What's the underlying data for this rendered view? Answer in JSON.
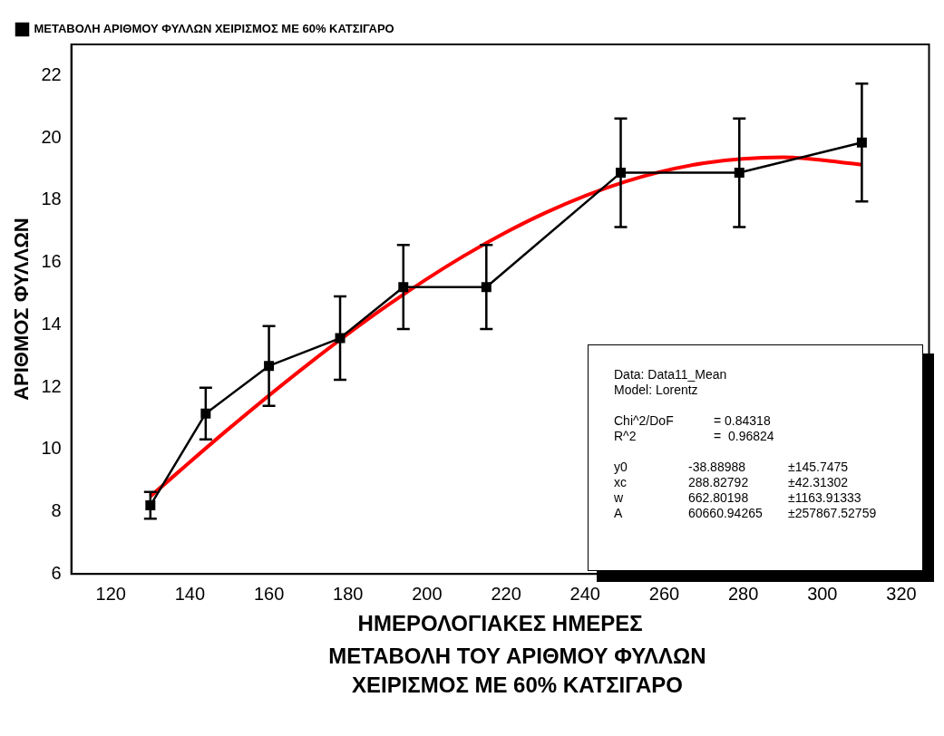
{
  "chart_data": {
    "type": "line",
    "title": "ΜΕΤΑΒΟΛΗ ΤΟΥ ΑΡΙΘΜΟΥ ΦΥΛΛΩΝ",
    "subtitle": "ΧΕΙΡΙΣΜΟΣ ΜΕ 60% ΚΑΤΣΙΓΑΡΟ",
    "xlabel": "ΗΜΕΡΟΛΟΓΙΑΚΕΣ ΗΜΕΡΕΣ",
    "ylabel": "ΑΡΙΘΜΟΣ ΦΥΛΛΩΝ",
    "xlim": [
      110,
      327
    ],
    "xticks": [
      120,
      140,
      160,
      180,
      200,
      220,
      240,
      260,
      280,
      300,
      320
    ],
    "ylim": [
      6,
      23
    ],
    "yticks": [
      6,
      8,
      10,
      12,
      14,
      16,
      18,
      20,
      22
    ],
    "grid": false,
    "legend": "top left",
    "series": [
      {
        "name": "ΜΕΤΑΒΟΛΗ ΑΡΙΘΜΟΥ ΦΥΛΛΩΝ ΧΕΙΡΙΣΜΟΣ ΜΕ 60% ΚΑΤΣΙΓΑΡΟ",
        "color": "#000000",
        "marker": "square",
        "line_style": "solid",
        "x": [
          130,
          144,
          160,
          178,
          194,
          215,
          249,
          279,
          310
        ],
        "values": [
          8.2,
          11.15,
          12.68,
          13.57,
          15.21,
          15.21,
          18.88,
          18.88,
          19.85
        ],
        "errors": [
          0.43,
          0.83,
          1.28,
          1.34,
          1.35,
          1.35,
          1.74,
          1.74,
          1.89
        ]
      },
      {
        "color": "#ff0000",
        "marker": "none",
        "line_style": "solid",
        "x": [
          130,
          150,
          170,
          190,
          210,
          230,
          250,
          270,
          290,
          310
        ],
        "values": [
          8.49,
          10.68,
          12.74,
          14.62,
          16.26,
          17.6,
          18.59,
          19.19,
          19.38,
          19.14
        ]
      }
    ],
    "annotations": [
      "Data: Data11_Mean",
      "Model: Lorentz",
      "Chi^2/DoF\t= 0.84318",
      "R^2\t=  0.96824",
      "y0\t-38.88988\t±145.7475",
      "xc\t288.82792\t±42.31302",
      "w\t662.80198\t±1163.91333",
      "A\t60660.94265\t±257867.52759"
    ]
  }
}
